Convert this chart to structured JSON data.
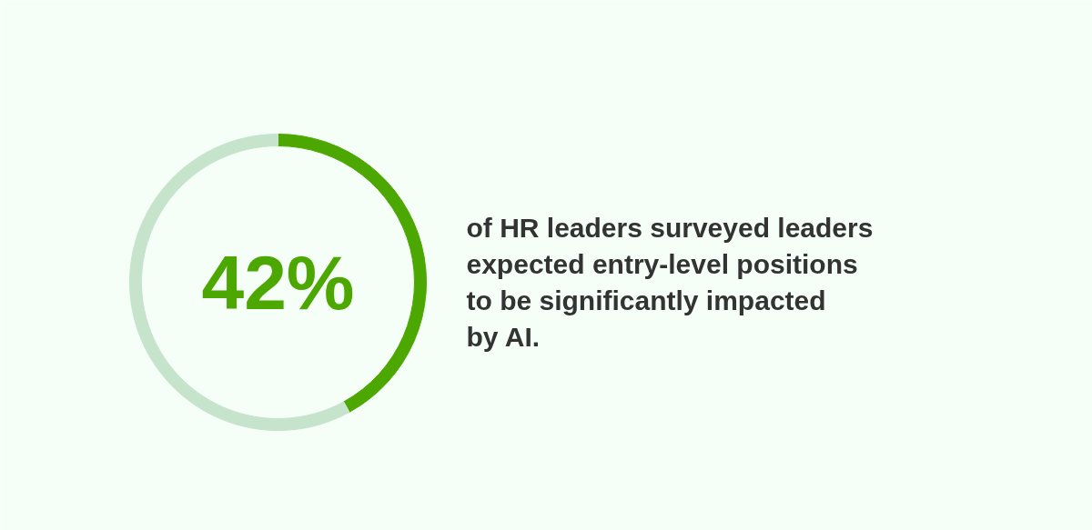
{
  "chart_data": {
    "type": "donut",
    "categories": [
      null,
      null
    ],
    "values": [
      42,
      58
    ],
    "colors": [
      "#4ca800",
      "#c6e3cc"
    ],
    "annotations": [
      "42%",
      "of HR leaders surveyed leaders expected entry-level positions to be significantly impacted by AI."
    ]
  }
}
